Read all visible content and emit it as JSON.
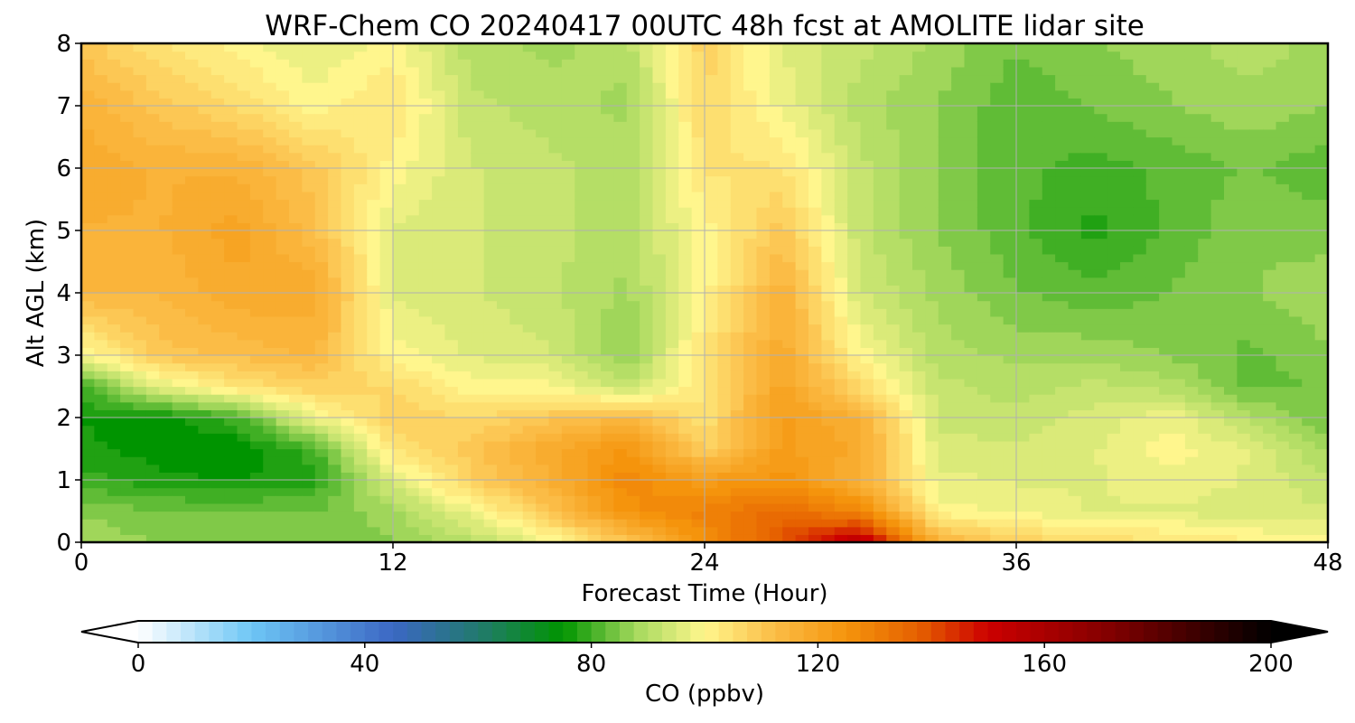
{
  "chart_data": {
    "type": "heatmap",
    "title": "WRF-Chem CO  20240417 00UTC 48h fcst at AMOLITE lidar site",
    "xlabel": "Forecast Time (Hour)",
    "ylabel": "Alt AGL (km)",
    "xlim": [
      0,
      48
    ],
    "ylim": [
      0,
      8
    ],
    "x_ticks": [
      0,
      12,
      24,
      36,
      48
    ],
    "y_ticks": [
      0,
      1,
      2,
      3,
      4,
      5,
      6,
      7,
      8
    ],
    "grid": true,
    "x": [
      0,
      3,
      6,
      9,
      12,
      15,
      18,
      21,
      24,
      27,
      30,
      33,
      36,
      39,
      42,
      45,
      48
    ],
    "y": [
      0,
      0.5,
      1,
      1.5,
      2,
      2.5,
      3,
      4,
      5,
      6,
      7,
      8
    ],
    "z": [
      [
        88,
        86,
        85,
        84,
        86,
        90,
        98,
        110,
        125,
        140,
        158,
        115,
        108,
        106,
        104,
        102,
        100
      ],
      [
        86,
        84,
        84,
        84,
        88,
        98,
        110,
        125,
        130,
        135,
        128,
        100,
        98,
        96,
        96,
        94,
        94
      ],
      [
        80,
        77,
        76,
        78,
        95,
        108,
        116,
        128,
        122,
        125,
        116,
        97,
        96,
        96,
        98,
        96,
        92
      ],
      [
        77,
        75,
        74,
        80,
        104,
        110,
        118,
        124,
        108,
        122,
        118,
        95,
        94,
        96,
        100,
        96,
        88
      ],
      [
        76,
        75,
        80,
        98,
        108,
        106,
        110,
        114,
        104,
        122,
        116,
        93,
        92,
        95,
        98,
        90,
        84
      ],
      [
        80,
        96,
        104,
        108,
        106,
        100,
        100,
        92,
        104,
        120,
        106,
        92,
        90,
        92,
        90,
        83,
        84
      ],
      [
        98,
        110,
        112,
        114,
        100,
        96,
        94,
        86,
        104,
        118,
        100,
        90,
        88,
        88,
        86,
        83,
        86
      ],
      [
        114,
        114,
        118,
        118,
        96,
        94,
        92,
        88,
        100,
        116,
        94,
        88,
        84,
        82,
        84,
        86,
        88
      ],
      [
        116,
        116,
        120,
        112,
        96,
        94,
        92,
        90,
        100,
        110,
        92,
        86,
        82,
        78,
        82,
        86,
        85
      ],
      [
        118,
        116,
        116,
        110,
        100,
        94,
        92,
        90,
        104,
        104,
        92,
        86,
        82,
        80,
        82,
        84,
        82
      ],
      [
        116,
        110,
        106,
        100,
        104,
        92,
        90,
        88,
        106,
        98,
        90,
        86,
        82,
        84,
        86,
        88,
        86
      ],
      [
        110,
        104,
        100,
        96,
        100,
        90,
        88,
        90,
        108,
        96,
        92,
        88,
        84,
        86,
        88,
        90,
        88
      ]
    ],
    "colorbar": {
      "label": "CO  (ppbv)",
      "min": 0,
      "max": 200,
      "ticks": [
        0,
        40,
        80,
        120,
        160,
        200
      ],
      "extend": "both",
      "colors": [
        {
          "v": 0,
          "c": "#ffffff"
        },
        {
          "v": 20,
          "c": "#6ec6f5"
        },
        {
          "v": 45,
          "c": "#3b67c4"
        },
        {
          "v": 60,
          "c": "#227a6e"
        },
        {
          "v": 75,
          "c": "#009400"
        },
        {
          "v": 88,
          "c": "#a6d95e"
        },
        {
          "v": 100,
          "c": "#fff68d"
        },
        {
          "v": 112,
          "c": "#fbbe48"
        },
        {
          "v": 125,
          "c": "#f5940c"
        },
        {
          "v": 138,
          "c": "#e55f00"
        },
        {
          "v": 150,
          "c": "#cc0000"
        },
        {
          "v": 172,
          "c": "#800000"
        },
        {
          "v": 200,
          "c": "#000000"
        }
      ]
    }
  }
}
